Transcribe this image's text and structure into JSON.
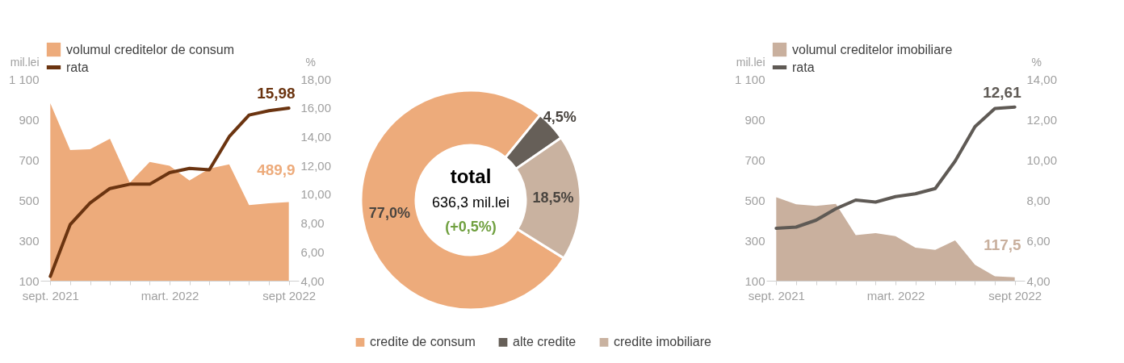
{
  "chart_data": [
    {
      "type": "area",
      "categories": [
        "sept. 2021",
        null,
        null,
        null,
        null,
        null,
        "mart. 2022",
        null,
        null,
        null,
        null,
        null,
        "sept 2022"
      ],
      "series": [
        {
          "name": "volumul creditelor de consum",
          "type": "area",
          "color": "#edab7b",
          "values": [
            980,
            748,
            752,
            804,
            586,
            689,
            670,
            597,
            656,
            677,
            475,
            484,
            489.9
          ],
          "value_labels": [
            null,
            null,
            null,
            null,
            null,
            null,
            null,
            null,
            null,
            null,
            null,
            null,
            "489,9"
          ]
        },
        {
          "name": "rata",
          "type": "line",
          "axis": "y2",
          "color": "#6b3410",
          "values": [
            4.3,
            7.9,
            9.4,
            10.4,
            10.7,
            10.7,
            11.5,
            11.8,
            11.7,
            14.0,
            15.5,
            15.8,
            15.98
          ],
          "value_labels": [
            null,
            null,
            null,
            null,
            null,
            null,
            null,
            null,
            null,
            null,
            null,
            null,
            "15,98"
          ]
        }
      ],
      "ylabel": "mil.lei",
      "y2label": "%",
      "ylim": [
        100,
        1100
      ],
      "yticks": [
        100,
        300,
        500,
        700,
        900,
        {
          "value": 1100,
          "label": "1 100"
        }
      ],
      "y2lim": [
        4,
        18
      ],
      "y2ticks": [
        {
          "value": 4,
          "label": "4,00"
        },
        {
          "value": 6,
          "label": "6,00"
        },
        {
          "value": 8,
          "label": "8,00"
        },
        {
          "value": 10,
          "label": "10,00"
        },
        {
          "value": 12,
          "label": "12,00"
        },
        {
          "value": 14,
          "label": "14,00"
        },
        {
          "value": 16,
          "label": "16,00"
        },
        {
          "value": 18,
          "label": "18,00"
        }
      ],
      "legend": "top left"
    },
    {
      "type": "donut",
      "categories": [
        "credite de consum",
        "alte credite",
        "credite imobiliare"
      ],
      "values": [
        77.0,
        4.5,
        18.5
      ],
      "colors": [
        "#edab7b",
        "#665f58",
        "#c9b2a0"
      ],
      "value_labels": [
        "77,0%",
        "4,5%",
        "18,5%"
      ],
      "annotations": [
        "total",
        "636,3 mil.lei",
        "(+0,5%)"
      ],
      "legend": "bottom"
    },
    {
      "type": "area",
      "categories": [
        "sept. 2021",
        null,
        null,
        null,
        null,
        null,
        "mart. 2022",
        null,
        null,
        null,
        null,
        null,
        "sept 2022"
      ],
      "series": [
        {
          "name": "volumul creditelor imobiliare",
          "type": "area",
          "color": "#c9b09e",
          "values": [
            514,
            479,
            471,
            481,
            326,
            336,
            321,
            264,
            253,
            300,
            179,
            122,
            117.5
          ],
          "value_labels": [
            null,
            null,
            null,
            null,
            null,
            null,
            null,
            null,
            null,
            null,
            null,
            null,
            "117,5"
          ]
        },
        {
          "name": "rata",
          "type": "line",
          "axis": "y2",
          "color": "#5f5a55",
          "values": [
            6.6,
            6.66,
            7.0,
            7.57,
            8.0,
            7.9,
            8.17,
            8.31,
            8.57,
            9.93,
            11.64,
            12.54,
            12.61
          ],
          "value_labels": [
            null,
            null,
            null,
            null,
            null,
            null,
            null,
            null,
            null,
            null,
            null,
            null,
            "12,61"
          ]
        }
      ],
      "ylabel": "mil.lei",
      "y2label": "%",
      "ylim": [
        100,
        1100
      ],
      "yticks": [
        100,
        300,
        500,
        700,
        900,
        {
          "value": 1100,
          "label": "1 100"
        }
      ],
      "y2lim": [
        4,
        14
      ],
      "y2ticks": [
        {
          "value": 4,
          "label": "4,00"
        },
        {
          "value": 6,
          "label": "6,00"
        },
        {
          "value": 8,
          "label": "8,00"
        },
        {
          "value": 10,
          "label": "10,00"
        },
        {
          "value": 12,
          "label": "12,00"
        },
        {
          "value": 14,
          "label": "14,00"
        }
      ],
      "legend": "top left"
    }
  ]
}
